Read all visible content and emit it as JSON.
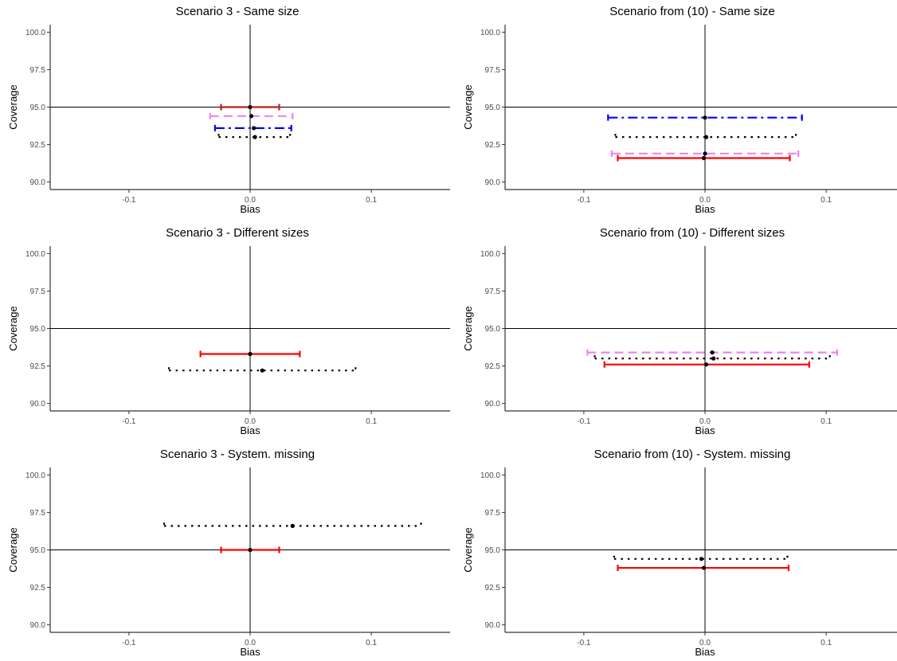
{
  "chart_data": [
    {
      "type": "errorbar",
      "title": "Scenario 3 - Same size",
      "xlabel": "Bias",
      "ylabel": "Coverage",
      "xlim": [
        -0.165,
        0.165
      ],
      "ylim": [
        89.5,
        100.5
      ],
      "xticks": [
        "-0.1",
        "0.0",
        "0.1"
      ],
      "yticks": [
        "90.0",
        "92.5",
        "95.0",
        "97.5",
        "100.0"
      ],
      "reference_line": 95,
      "series": [
        {
          "color": "#b22222",
          "linestyle": "solid",
          "y": 95.0,
          "x": 0.0,
          "xmin": -0.024,
          "xmax": 0.024
        },
        {
          "color": "#ee82ee",
          "linestyle": "dashed",
          "y": 94.4,
          "x": 0.001,
          "xmin": -0.033,
          "xmax": 0.035
        },
        {
          "color": "#0000ff",
          "linestyle": "dotdash",
          "y": 93.6,
          "x": 0.003,
          "xmin": -0.029,
          "xmax": 0.034
        },
        {
          "color": "#000000",
          "linestyle": "dotted",
          "y": 93.0,
          "x": 0.004,
          "xmin": -0.026,
          "xmax": 0.033
        }
      ]
    },
    {
      "type": "errorbar",
      "title": "Scenario from (10) - Same size",
      "xlabel": "Bias",
      "ylabel": "Coverage",
      "xlim": [
        -0.165,
        0.165
      ],
      "ylim": [
        89.5,
        100.5
      ],
      "xticks": [
        "-0.1",
        "0.0",
        "0.1"
      ],
      "yticks": [
        "90.0",
        "92.5",
        "95.0",
        "97.5",
        "100.0"
      ],
      "reference_line": 95,
      "series": [
        {
          "color": "#0000ff",
          "linestyle": "dotdash",
          "y": 94.3,
          "x": 0.0,
          "xmin": -0.08,
          "xmax": 0.08
        },
        {
          "color": "#000000",
          "linestyle": "dotted",
          "y": 93.0,
          "x": 0.001,
          "xmin": -0.074,
          "xmax": 0.075
        },
        {
          "color": "#ee82ee",
          "linestyle": "dashed",
          "y": 91.9,
          "x": 0.0,
          "xmin": -0.077,
          "xmax": 0.077
        },
        {
          "color": "#ff0000",
          "linestyle": "solid",
          "y": 91.6,
          "x": -0.001,
          "xmin": -0.072,
          "xmax": 0.07
        }
      ]
    },
    {
      "type": "errorbar",
      "title": "Scenario 3 - Different sizes",
      "xlabel": "Bias",
      "ylabel": "Coverage",
      "xlim": [
        -0.165,
        0.165
      ],
      "ylim": [
        89.5,
        100.5
      ],
      "xticks": [
        "-0.1",
        "0.0",
        "0.1"
      ],
      "yticks": [
        "90.0",
        "92.5",
        "95.0",
        "97.5",
        "100.0"
      ],
      "reference_line": 95,
      "series": [
        {
          "color": "#ff0000",
          "linestyle": "solid",
          "y": 93.3,
          "x": 0.0,
          "xmin": -0.041,
          "xmax": 0.041
        },
        {
          "color": "#000000",
          "linestyle": "dotted",
          "y": 92.2,
          "x": 0.01,
          "xmin": -0.067,
          "xmax": 0.087
        }
      ]
    },
    {
      "type": "errorbar",
      "title": "Scenario from (10) - Different sizes",
      "xlabel": "Bias",
      "ylabel": "Coverage",
      "xlim": [
        -0.165,
        0.165
      ],
      "ylim": [
        89.5,
        100.5
      ],
      "xticks": [
        "-0.1",
        "0.0",
        "0.1"
      ],
      "yticks": [
        "90.0",
        "92.5",
        "95.0",
        "97.5",
        "100.0"
      ],
      "reference_line": 95,
      "series": [
        {
          "color": "#ee82ee",
          "linestyle": "dashed",
          "y": 93.4,
          "x": 0.006,
          "xmin": -0.097,
          "xmax": 0.109
        },
        {
          "color": "#000000",
          "linestyle": "dotted",
          "y": 93.0,
          "x": 0.007,
          "xmin": -0.091,
          "xmax": 0.103
        },
        {
          "color": "#ff0000",
          "linestyle": "solid",
          "y": 92.6,
          "x": 0.001,
          "xmin": -0.083,
          "xmax": 0.086
        }
      ]
    },
    {
      "type": "errorbar",
      "title": "Scenario 3 - System. missing",
      "xlabel": "Bias",
      "ylabel": "Coverage",
      "xlim": [
        -0.165,
        0.165
      ],
      "ylim": [
        89.5,
        100.5
      ],
      "xticks": [
        "-0.1",
        "0.0",
        "0.1"
      ],
      "yticks": [
        "90.0",
        "92.5",
        "95.0",
        "97.5",
        "100.0"
      ],
      "reference_line": 95,
      "series": [
        {
          "color": "#000000",
          "linestyle": "dotted",
          "y": 96.6,
          "x": 0.035,
          "xmin": -0.071,
          "xmax": 0.141
        },
        {
          "color": "#ff0000",
          "linestyle": "solid",
          "y": 95.0,
          "x": 0.0,
          "xmin": -0.024,
          "xmax": 0.024
        }
      ]
    },
    {
      "type": "errorbar",
      "title": "Scenario from (10) - System. missing",
      "xlabel": "Bias",
      "ylabel": "Coverage",
      "xlim": [
        -0.165,
        0.165
      ],
      "ylim": [
        89.5,
        100.5
      ],
      "xticks": [
        "-0.1",
        "0.0",
        "0.1"
      ],
      "yticks": [
        "90.0",
        "92.5",
        "95.0",
        "97.5",
        "100.0"
      ],
      "reference_line": 95,
      "series": [
        {
          "color": "#000000",
          "linestyle": "dotted",
          "y": 94.4,
          "x": -0.003,
          "xmin": -0.075,
          "xmax": 0.068
        },
        {
          "color": "#ff0000",
          "linestyle": "solid",
          "y": 93.8,
          "x": -0.001,
          "xmin": -0.072,
          "xmax": 0.069
        }
      ]
    }
  ]
}
